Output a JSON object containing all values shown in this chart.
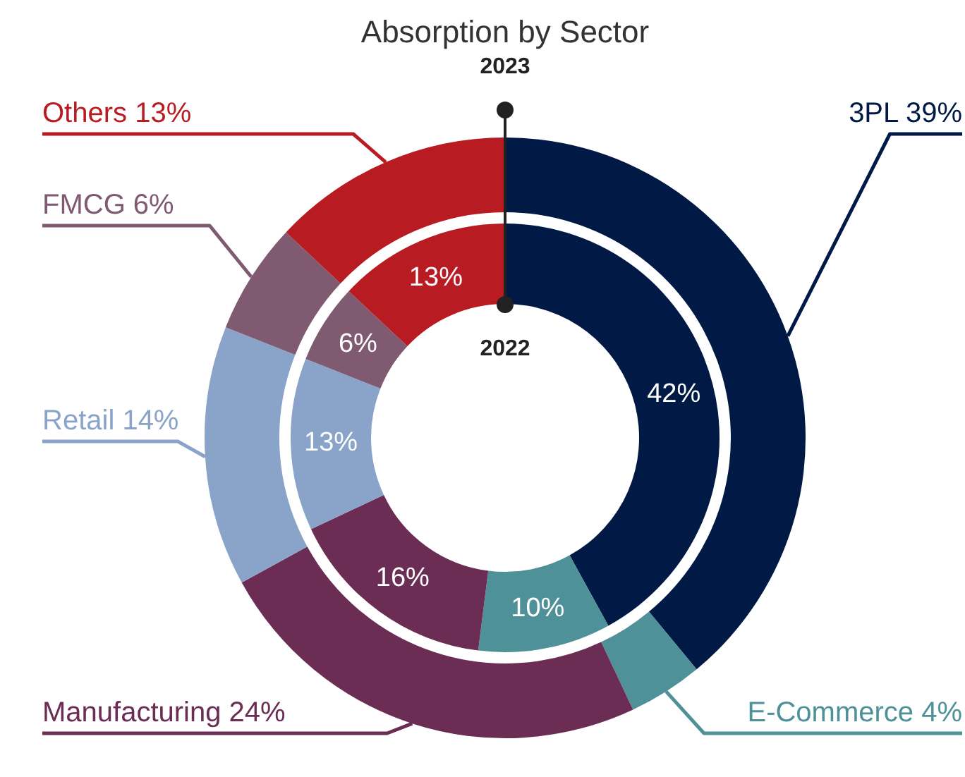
{
  "chart_data": {
    "type": "donut",
    "title": "Absorption by Sector",
    "categories": [
      "3PL",
      "E-Commerce",
      "Manufacturing",
      "Retail",
      "FMCG",
      "Others"
    ],
    "colors": [
      "#001a45",
      "#4e9199",
      "#6b2d54",
      "#8aa3c8",
      "#7f5a70",
      "#b81c22"
    ],
    "series": [
      {
        "name": "2023",
        "values": [
          39,
          4,
          24,
          14,
          6,
          13
        ],
        "value_labels": [
          "39%",
          "4%",
          "24%",
          "14%",
          "6%",
          "13%"
        ]
      },
      {
        "name": "2022",
        "values": [
          42,
          10,
          16,
          13,
          6,
          13
        ],
        "value_labels": [
          "42%",
          "10%",
          "16%",
          "13%",
          "6%",
          "13%"
        ]
      }
    ]
  }
}
